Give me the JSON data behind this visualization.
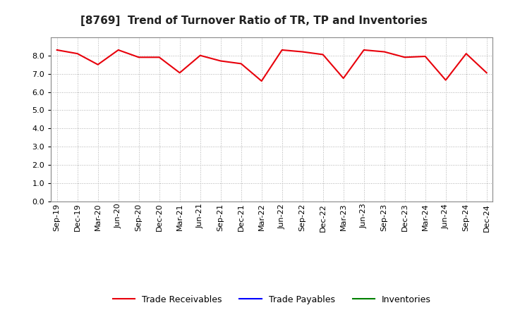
{
  "title": "[8769]  Trend of Turnover Ratio of TR, TP and Inventories",
  "x_labels": [
    "Sep-19",
    "Dec-19",
    "Mar-20",
    "Jun-20",
    "Sep-20",
    "Dec-20",
    "Mar-21",
    "Jun-21",
    "Sep-21",
    "Dec-21",
    "Mar-22",
    "Jun-22",
    "Sep-22",
    "Dec-22",
    "Mar-23",
    "Jun-23",
    "Sep-23",
    "Dec-23",
    "Mar-24",
    "Jun-24",
    "Sep-24",
    "Dec-24"
  ],
  "trade_receivables": [
    8.3,
    8.1,
    7.5,
    8.3,
    7.9,
    7.9,
    7.05,
    8.0,
    7.7,
    7.55,
    6.6,
    8.3,
    8.2,
    8.05,
    6.75,
    8.3,
    8.2,
    7.9,
    7.95,
    6.65,
    8.1,
    7.05
  ],
  "trade_payables": [
    null,
    null,
    null,
    null,
    null,
    null,
    null,
    null,
    null,
    null,
    null,
    null,
    null,
    null,
    null,
    null,
    null,
    null,
    null,
    null,
    null,
    null
  ],
  "inventories": [
    null,
    null,
    null,
    null,
    null,
    null,
    null,
    null,
    null,
    null,
    null,
    null,
    null,
    null,
    null,
    null,
    null,
    null,
    null,
    null,
    null,
    null
  ],
  "ylim": [
    0.0,
    9.0
  ],
  "yticks": [
    0.0,
    1.0,
    2.0,
    3.0,
    4.0,
    5.0,
    6.0,
    7.0,
    8.0
  ],
  "tr_color": "#e8000b",
  "tp_color": "#0000ff",
  "inv_color": "#008000",
  "background_color": "#ffffff",
  "plot_bg_color": "#ffffff",
  "grid_color": "#b0b0b0",
  "legend_labels": [
    "Trade Receivables",
    "Trade Payables",
    "Inventories"
  ],
  "title_fontsize": 11,
  "tick_fontsize": 8,
  "legend_fontsize": 9
}
